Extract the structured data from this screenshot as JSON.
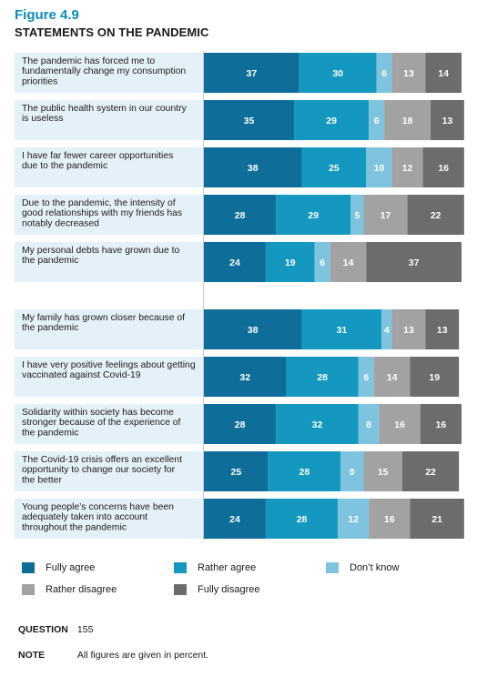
{
  "figure": {
    "number": "Figure 4.9",
    "title": "STATEMENTS ON THE PANDEMIC"
  },
  "chart_data": {
    "type": "bar",
    "orientation": "horizontal-stacked-100",
    "categories": [
      "The pandemic has forced me to fundamentally change my consumption priorities",
      "The public health system in our country is useless",
      "I have far fewer career opportunities due to the pandemic",
      "Due to the pandemic, the intensity of good relationships with my friends has notably decreased",
      "My personal debts have grown due to the pandemic",
      "My family has grown closer because of the pandemic",
      "I have very positive feelings about getting vaccinated against Covid-19",
      "Solidarity within society has become stronger because of the experience of the pandemic",
      "The Covid-19 crisis offers an excellent opportunity to change our society for the better",
      "Young people’s concerns have been adequately taken into account throughout the pandemic"
    ],
    "category_lines": [
      [
        "The pandemic has forced me to",
        "fundamentally change my consumption",
        "priorities"
      ],
      [
        "The public health system in our country",
        "is useless"
      ],
      [
        "I have far fewer career opportunities",
        "due to the pandemic"
      ],
      [
        "Due to the pandemic, the intensity of",
        "good relationships with my friends has",
        "notably decreased"
      ],
      [
        "My personal debts have grown due to",
        "the pandemic"
      ],
      [
        "My family has grown closer because of",
        "the pandemic"
      ],
      [
        "I have very positive feelings about getting",
        "vaccinated against Covid-19"
      ],
      [
        "Solidarity within society has become",
        "stronger because of the experience of",
        "the pandemic"
      ],
      [
        "The Covid-19 crisis offers an excellent",
        "opportunity to change our society for",
        "the better"
      ],
      [
        "Young people’s concerns have been",
        "adequately taken into account",
        "throughout the pandemic"
      ]
    ],
    "group_break_after_index": 4,
    "series": [
      {
        "name": "Fully agree",
        "color": "#0f6e99",
        "values": [
          37,
          35,
          38,
          28,
          24,
          38,
          32,
          28,
          25,
          24
        ]
      },
      {
        "name": "Rather agree",
        "color": "#1498bf",
        "values": [
          30,
          29,
          25,
          29,
          19,
          31,
          28,
          32,
          28,
          28
        ]
      },
      {
        "name": "Don’t know",
        "color": "#7fc4de",
        "values": [
          6,
          6,
          10,
          5,
          6,
          4,
          6,
          8,
          9,
          12
        ]
      },
      {
        "name": "Rather disagree",
        "color": "#a2a2a2",
        "values": [
          13,
          18,
          12,
          17,
          14,
          13,
          14,
          16,
          15,
          16
        ]
      },
      {
        "name": "Fully disagree",
        "color": "#6c6c6c",
        "values": [
          14,
          13,
          16,
          22,
          37,
          13,
          19,
          16,
          22,
          21
        ]
      }
    ],
    "xlim": [
      0,
      100
    ],
    "grid": false,
    "legend_position": "bottom"
  },
  "colors": {
    "row_background": "#e5f1f8",
    "figure_number": "#0a8bbd"
  },
  "meta": {
    "question_label": "QUESTION",
    "question_value": "155",
    "note_label": "NOTE",
    "note_value": "All figures are given in percent."
  }
}
